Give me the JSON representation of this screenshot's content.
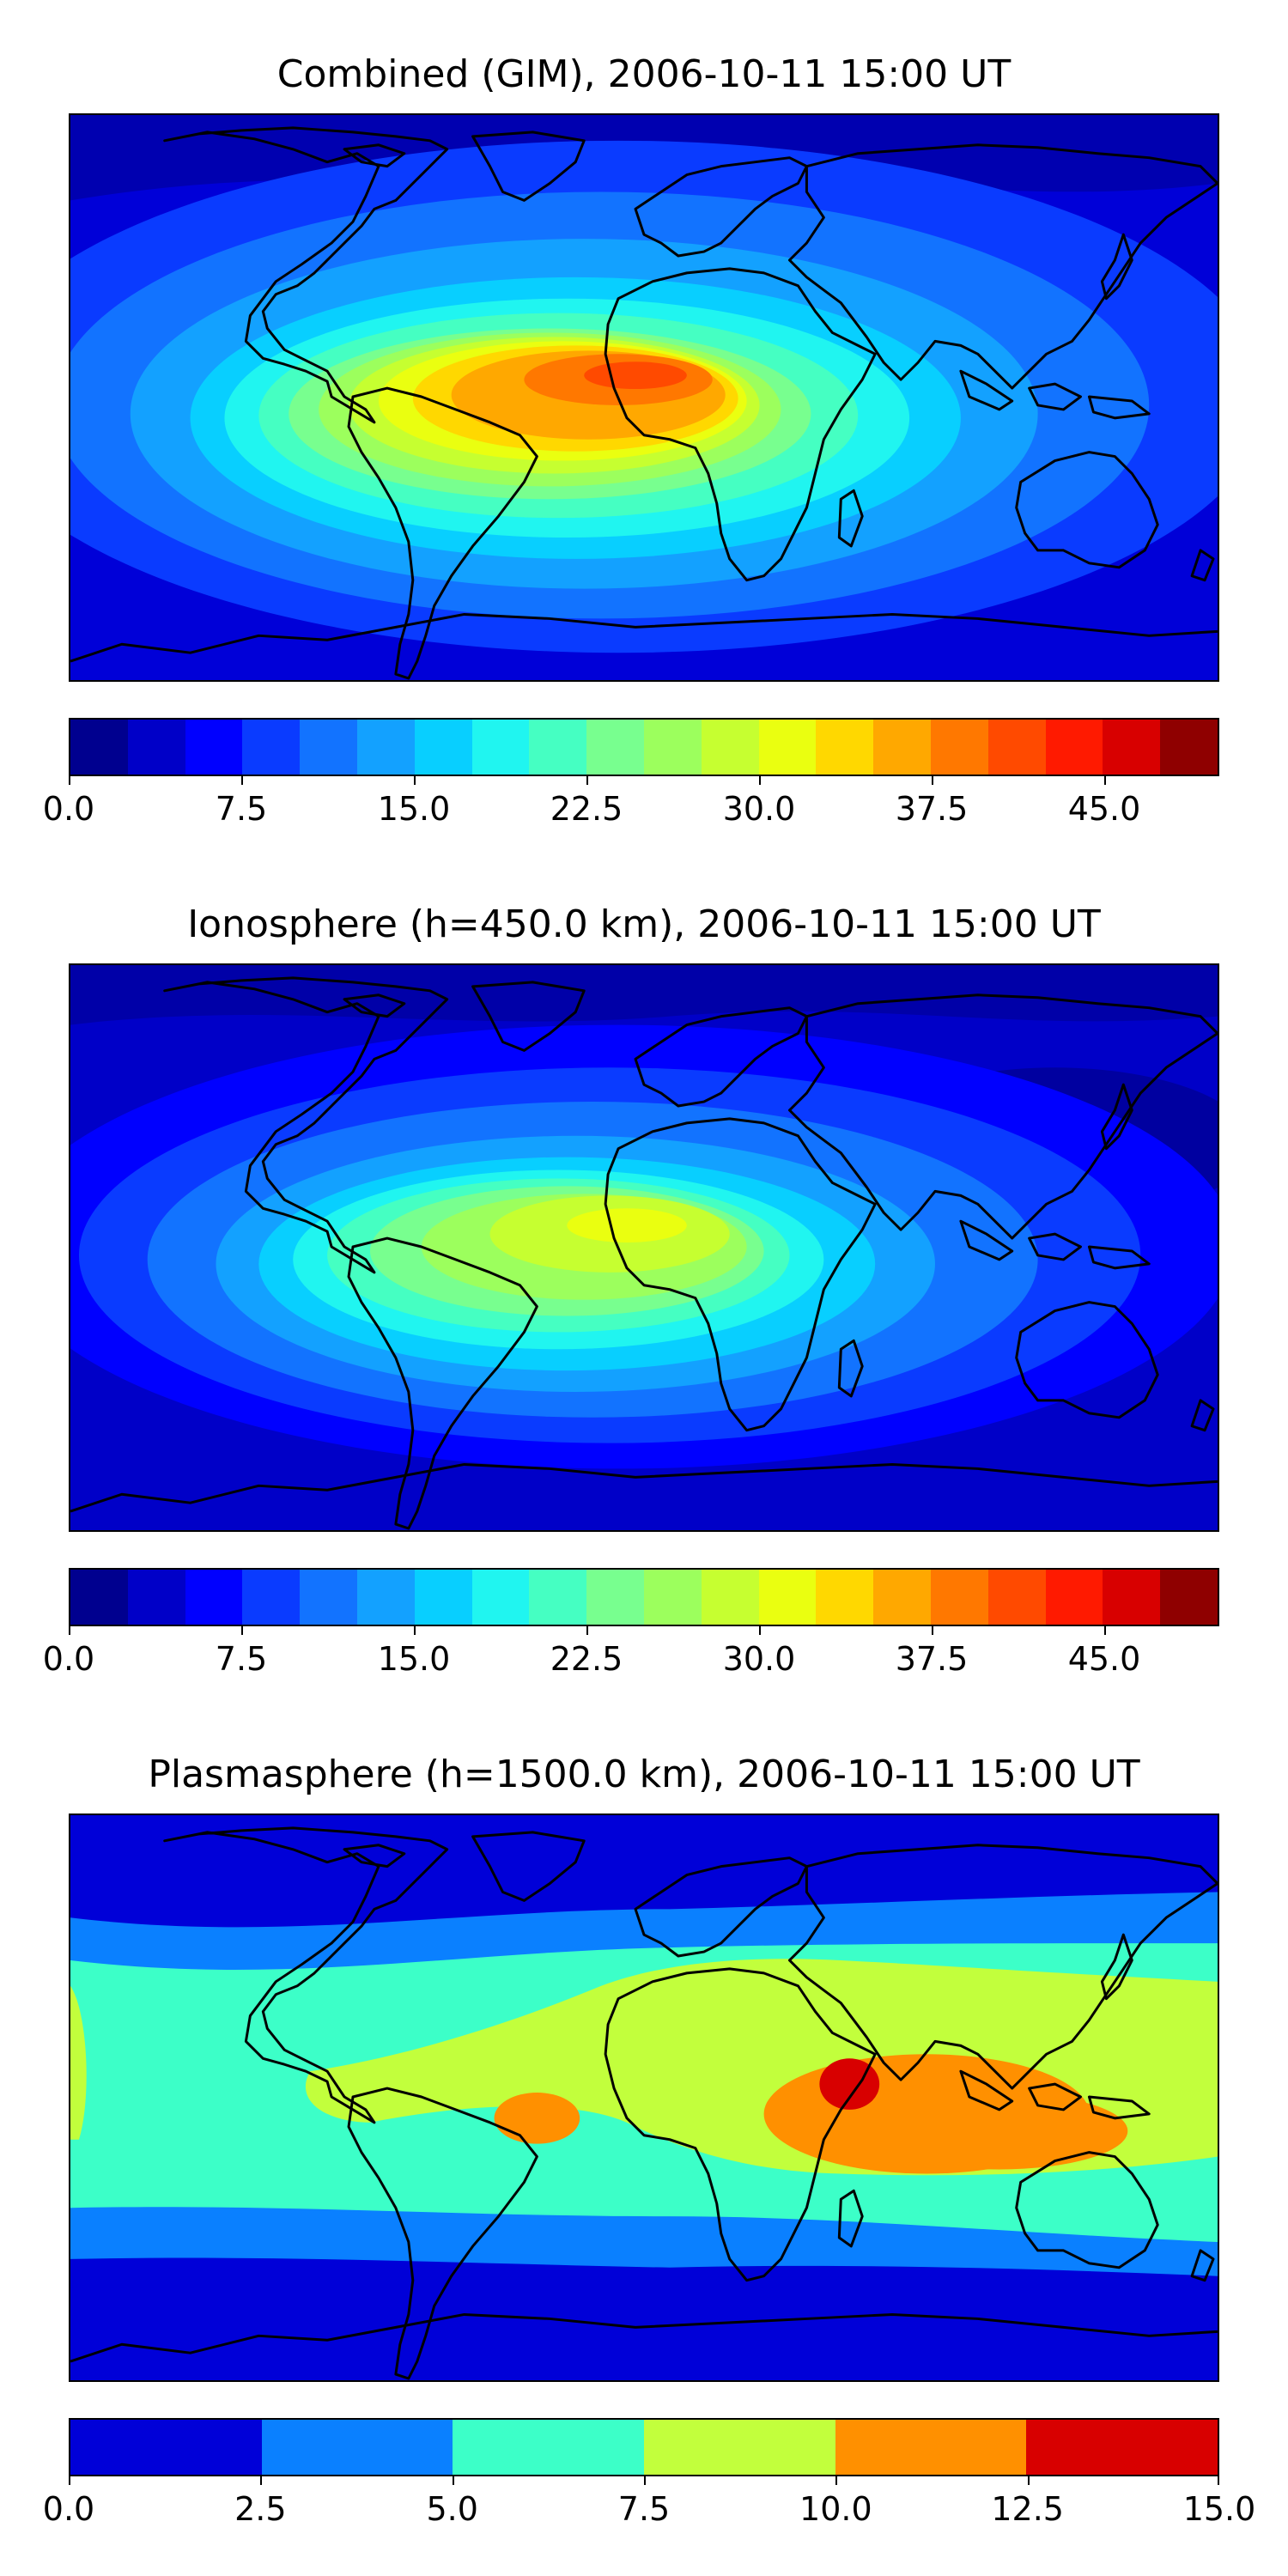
{
  "panels": [
    {
      "title": "Combined (GIM), 2006-10-11 15:00 UT",
      "colorbar": {
        "vmin": 0.0,
        "vmax": 50.0,
        "colors": [
          "#00008f",
          "#0000c8",
          "#0000ff",
          "#0a3bff",
          "#1273ff",
          "#13a1ff",
          "#08cfff",
          "#20f5f0",
          "#45ffc2",
          "#78ff8f",
          "#9cff5d",
          "#c6ff30",
          "#eaff10",
          "#ffd800",
          "#ffa800",
          "#ff7800",
          "#ff4a00",
          "#ff1a00",
          "#d80000",
          "#8f0000"
        ],
        "tick_labels": [
          "0.0",
          "7.5",
          "15.0",
          "22.5",
          "30.0",
          "37.5",
          "45.0"
        ],
        "tick_values": [
          0,
          7.5,
          15,
          22.5,
          30,
          37.5,
          45
        ]
      }
    },
    {
      "title": "Ionosphere  (h=450.0 km), 2006-10-11 15:00 UT",
      "colorbar": {
        "vmin": 0.0,
        "vmax": 50.0,
        "colors": [
          "#00008f",
          "#0000c8",
          "#0000ff",
          "#0a3bff",
          "#1273ff",
          "#13a1ff",
          "#08cfff",
          "#20f5f0",
          "#45ffc2",
          "#78ff8f",
          "#9cff5d",
          "#c6ff30",
          "#eaff10",
          "#ffd800",
          "#ffa800",
          "#ff7800",
          "#ff4a00",
          "#ff1a00",
          "#d80000",
          "#8f0000"
        ],
        "tick_labels": [
          "0.0",
          "7.5",
          "15.0",
          "22.5",
          "30.0",
          "37.5",
          "45.0"
        ],
        "tick_values": [
          0,
          7.5,
          15,
          22.5,
          30,
          37.5,
          45
        ]
      }
    },
    {
      "title": "Plasmasphere (h=1500.0 km), 2006-10-11 15:00 UT",
      "colorbar": {
        "vmin": 0.0,
        "vmax": 15.0,
        "colors": [
          "#0000d8",
          "#0a80ff",
          "#3cffc8",
          "#c2ff3c",
          "#ff9000",
          "#d80000"
        ],
        "tick_labels": [
          "0.0",
          "2.5",
          "5.0",
          "7.5",
          "10.0",
          "12.5",
          "15.0"
        ],
        "tick_values": [
          0,
          2.5,
          5,
          7.5,
          10,
          12.5,
          15
        ]
      }
    }
  ]
}
